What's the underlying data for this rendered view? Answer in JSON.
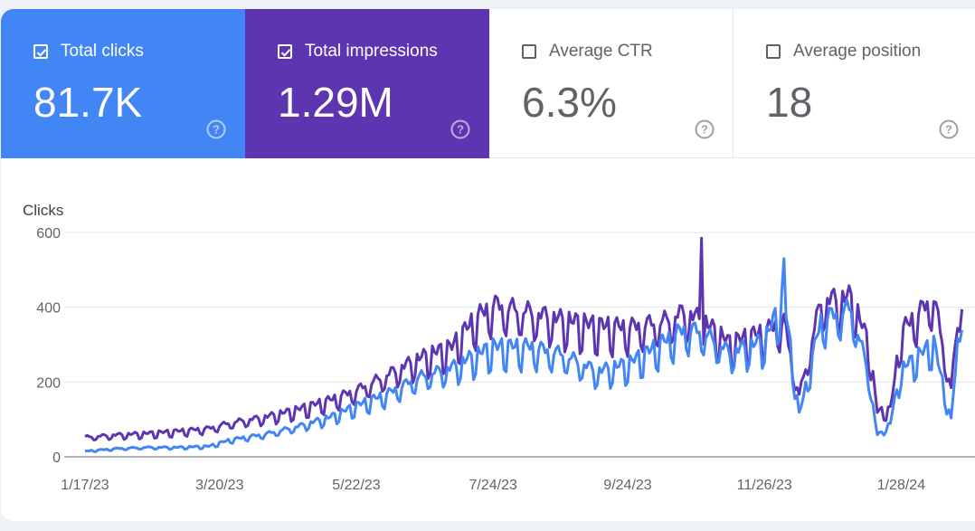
{
  "metrics": [
    {
      "label": "Total clicks",
      "value": "81.7K",
      "checked": true,
      "color": "#4285f4"
    },
    {
      "label": "Total impressions",
      "value": "1.29M",
      "checked": true,
      "color": "#5e35b1"
    },
    {
      "label": "Average CTR",
      "value": "6.3%",
      "checked": false,
      "color": "#ffffff"
    },
    {
      "label": "Average position",
      "value": "18",
      "checked": false,
      "color": "#ffffff"
    }
  ],
  "help_icon": "help-circle-icon",
  "chart_data": {
    "type": "line",
    "ylabel": "Clicks",
    "ylim": [
      0,
      600
    ],
    "yticks": [
      0,
      200,
      400,
      600
    ],
    "xticks": [
      "1/17/23",
      "3/20/23",
      "5/22/23",
      "7/24/23",
      "9/24/23",
      "11/26/23",
      "1/28/24"
    ],
    "x_start": "1/17/23",
    "grid": true,
    "series": [
      {
        "color": "#5e35b1",
        "keypoints": [
          [
            "1/17/23",
            52
          ],
          [
            "2/1/23",
            58
          ],
          [
            "2/15/23",
            62
          ],
          [
            "3/1/23",
            68
          ],
          [
            "3/15/23",
            75
          ],
          [
            "3/25/23",
            90
          ],
          [
            "4/10/23",
            105
          ],
          [
            "4/25/23",
            125
          ],
          [
            "5/10/23",
            150
          ],
          [
            "5/22/23",
            175
          ],
          [
            "6/5/23",
            215
          ],
          [
            "6/20/23",
            260
          ],
          [
            "7/5/23",
            290
          ],
          [
            "7/15/23",
            360
          ],
          [
            "7/24/23",
            400
          ],
          [
            "8/10/23",
            380
          ],
          [
            "8/25/23",
            360
          ],
          [
            "9/10/23",
            345
          ],
          [
            "9/24/23",
            340
          ],
          [
            "10/10/23",
            355
          ],
          [
            "10/20/23",
            380
          ],
          [
            "10/28/23",
            360
          ],
          [
            "11/10/23",
            300
          ],
          [
            "11/26/23",
            330
          ],
          [
            "12/5/23",
            355
          ],
          [
            "12/12/23",
            160
          ],
          [
            "12/22/23",
            410
          ],
          [
            "1/5/24",
            420
          ],
          [
            "1/13/24",
            300
          ],
          [
            "1/17/24",
            120
          ],
          [
            "1/23/24",
            125
          ],
          [
            "1/28/24",
            330
          ],
          [
            "2/12/24",
            420
          ],
          [
            "2/20/24",
            180
          ],
          [
            "2/25/24",
            460
          ]
        ],
        "peaks": [
          [
            "10/28/23",
            585
          ]
        ]
      },
      {
        "color": "#4285f4",
        "keypoints": [
          [
            "1/17/23",
            15
          ],
          [
            "2/1/23",
            22
          ],
          [
            "2/15/23",
            25
          ],
          [
            "3/1/23",
            25
          ],
          [
            "3/15/23",
            28
          ],
          [
            "3/25/23",
            45
          ],
          [
            "4/10/23",
            60
          ],
          [
            "4/25/23",
            80
          ],
          [
            "5/10/23",
            105
          ],
          [
            "5/22/23",
            135
          ],
          [
            "6/5/23",
            165
          ],
          [
            "6/20/23",
            210
          ],
          [
            "7/5/23",
            235
          ],
          [
            "7/15/23",
            265
          ],
          [
            "7/24/23",
            290
          ],
          [
            "8/10/23",
            290
          ],
          [
            "8/25/23",
            270
          ],
          [
            "9/10/23",
            225
          ],
          [
            "9/24/23",
            245
          ],
          [
            "10/10/23",
            300
          ],
          [
            "10/20/23",
            335
          ],
          [
            "10/28/23",
            330
          ],
          [
            "11/10/23",
            275
          ],
          [
            "11/26/23",
            305
          ],
          [
            "12/5/23",
            420
          ],
          [
            "12/12/23",
            110
          ],
          [
            "12/22/23",
            360
          ],
          [
            "1/5/24",
            390
          ],
          [
            "1/13/24",
            220
          ],
          [
            "1/17/24",
            55
          ],
          [
            "1/23/24",
            90
          ],
          [
            "1/28/24",
            230
          ],
          [
            "2/12/24",
            300
          ],
          [
            "2/20/24",
            95
          ],
          [
            "2/25/24",
            430
          ]
        ],
        "peaks": [
          [
            "12/5/23",
            530
          ]
        ]
      }
    ]
  }
}
